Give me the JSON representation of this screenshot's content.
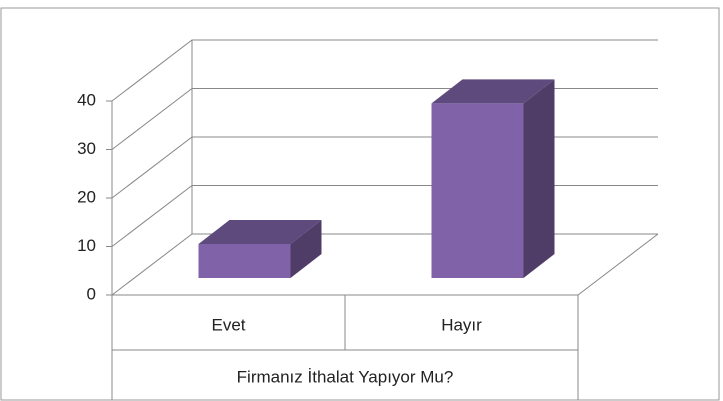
{
  "chart_data": {
    "type": "bar3d",
    "x_label": "Firmanız İthalat Yapıyor Mu?",
    "categories": [
      "Evet",
      "Hayır"
    ],
    "values": [
      7,
      36
    ],
    "color": "#7f62a8",
    "ylim": [
      0,
      40
    ],
    "yticks": [
      0,
      10,
      20,
      30,
      40
    ],
    "grid": true
  }
}
